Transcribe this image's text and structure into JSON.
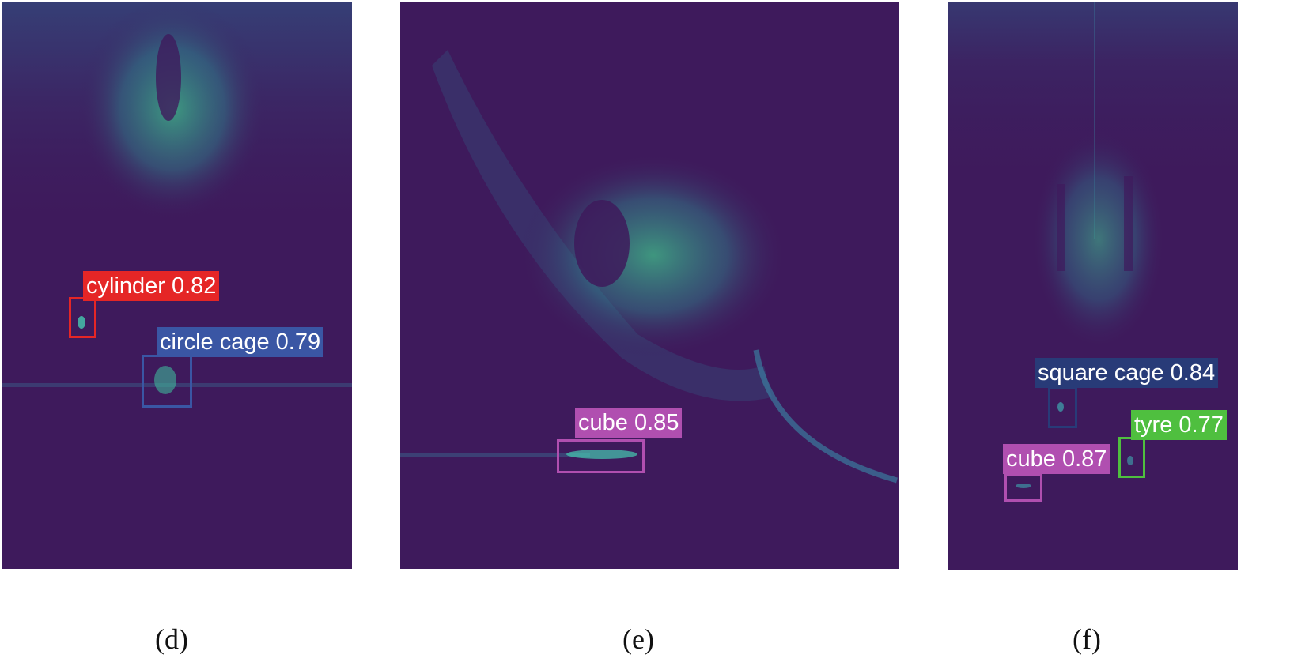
{
  "panels": [
    {
      "caption": "(d)",
      "detections": [
        {
          "label": "cylinder 0.82",
          "color": "#e52626"
        },
        {
          "label": "circle cage 0.79",
          "color": "#3a56a4"
        }
      ]
    },
    {
      "caption": "(e)",
      "detections": [
        {
          "label": "cube 0.85",
          "color": "#b04fb0"
        }
      ]
    },
    {
      "caption": "(f)",
      "detections": [
        {
          "label": "square cage 0.84",
          "color": "#283b78"
        },
        {
          "label": "tyre 0.77",
          "color": "#4fbf3f"
        },
        {
          "label": "cube 0.87",
          "color": "#b04fb0"
        }
      ]
    }
  ],
  "colors": {
    "background": "#3e1a5c",
    "sonar_glow_dim": "#2f6e8e",
    "sonar_glow_bright": "#3fbf8a"
  }
}
